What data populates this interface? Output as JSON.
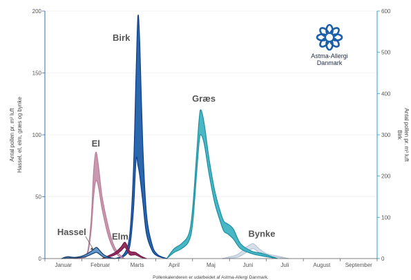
{
  "footer": "Pollenkalenderen er udarbeidet af Astma-Allergi Danmark.",
  "logo": {
    "line1": "Astma-Allergi",
    "line2": "Danmark",
    "icon": "astma-allergi-logo-icon",
    "color": "#1a5fa8"
  },
  "chart_data": {
    "type": "area",
    "title": "",
    "x_axis": {
      "type": "month",
      "range": [
        1,
        10
      ],
      "tick_labels": [
        "Januar",
        "Februar",
        "Marts",
        "April",
        "Maj",
        "Juni",
        "Juli",
        "August",
        "September"
      ]
    },
    "y_left": {
      "label_line1": "Antal pollen pr. m³ luft",
      "label_line2": "Hassel, el, elm, græs og bynke",
      "range": [
        0,
        200
      ],
      "ticks": [
        "0",
        "50",
        "100",
        "150",
        "200"
      ],
      "color": "#2d6fb0"
    },
    "y_right": {
      "label_line1": "Antal pollen pr. m³ luft",
      "label_line2": "Birk",
      "range": [
        0,
        600
      ],
      "ticks": [
        "0",
        "100",
        "200",
        "300",
        "400",
        "500",
        "600"
      ],
      "color": "#2a9fd6"
    },
    "grid": true,
    "series": [
      {
        "name": "Hassel",
        "axis": "left",
        "color": "#1a3e6b",
        "fill": "#5b94c8",
        "label_month": 2.1,
        "upper": [
          [
            1.45,
            0
          ],
          [
            1.6,
            1.5
          ],
          [
            1.8,
            1
          ],
          [
            2.0,
            2
          ],
          [
            2.15,
            4
          ],
          [
            2.3,
            7
          ],
          [
            2.4,
            9
          ],
          [
            2.5,
            6
          ],
          [
            2.6,
            3
          ],
          [
            2.75,
            1
          ],
          [
            2.9,
            0
          ]
        ],
        "lower": [
          [
            1.45,
            0
          ],
          [
            1.6,
            0.5
          ],
          [
            1.8,
            0.5
          ],
          [
            2.0,
            1
          ],
          [
            2.15,
            2
          ],
          [
            2.3,
            4
          ],
          [
            2.4,
            5
          ],
          [
            2.5,
            3
          ],
          [
            2.6,
            1
          ],
          [
            2.75,
            0.5
          ],
          [
            2.9,
            0
          ]
        ]
      },
      {
        "name": "El",
        "axis": "left",
        "color": "#b87d98",
        "fill": "#c594ad",
        "label_month": 2.4,
        "upper": [
          [
            1.8,
            0
          ],
          [
            2.0,
            1
          ],
          [
            2.15,
            5
          ],
          [
            2.25,
            30
          ],
          [
            2.32,
            70
          ],
          [
            2.38,
            86
          ],
          [
            2.45,
            75
          ],
          [
            2.55,
            50
          ],
          [
            2.7,
            28
          ],
          [
            2.85,
            12
          ],
          [
            3.0,
            4
          ],
          [
            3.15,
            0
          ]
        ],
        "lower": [
          [
            1.8,
            0
          ],
          [
            2.0,
            0.5
          ],
          [
            2.15,
            3
          ],
          [
            2.25,
            22
          ],
          [
            2.32,
            50
          ],
          [
            2.38,
            63
          ],
          [
            2.45,
            58
          ],
          [
            2.55,
            40
          ],
          [
            2.7,
            20
          ],
          [
            2.85,
            8
          ],
          [
            3.0,
            2
          ],
          [
            3.15,
            0
          ]
        ]
      },
      {
        "name": "Elm",
        "axis": "left",
        "color": "#7a1848",
        "fill": "#8a2556",
        "label_month": 2.8,
        "upper": [
          [
            2.55,
            0
          ],
          [
            2.7,
            2
          ],
          [
            2.9,
            5
          ],
          [
            3.05,
            9
          ],
          [
            3.15,
            13
          ],
          [
            3.2,
            12
          ],
          [
            3.3,
            6
          ],
          [
            3.45,
            5
          ],
          [
            3.6,
            2
          ],
          [
            3.75,
            0
          ]
        ],
        "lower": [
          [
            2.55,
            0
          ],
          [
            2.7,
            1
          ],
          [
            2.9,
            3
          ],
          [
            3.05,
            6
          ],
          [
            3.15,
            9
          ],
          [
            3.2,
            8
          ],
          [
            3.3,
            3
          ],
          [
            3.45,
            3
          ],
          [
            3.6,
            1
          ],
          [
            3.75,
            0
          ]
        ]
      },
      {
        "name": "Birk",
        "axis": "right",
        "color": "#0d3e8a",
        "fill": "#1f5fa8",
        "label_month": 3.0,
        "upper": [
          [
            2.9,
            0
          ],
          [
            3.15,
            12
          ],
          [
            3.3,
            60
          ],
          [
            3.4,
            220
          ],
          [
            3.47,
            450
          ],
          [
            3.52,
            588
          ],
          [
            3.57,
            520
          ],
          [
            3.65,
            280
          ],
          [
            3.75,
            110
          ],
          [
            3.9,
            35
          ],
          [
            4.05,
            10
          ],
          [
            4.3,
            0
          ]
        ],
        "lower": [
          [
            2.9,
            0
          ],
          [
            3.15,
            6
          ],
          [
            3.3,
            30
          ],
          [
            3.4,
            120
          ],
          [
            3.47,
            240
          ],
          [
            3.52,
            226
          ],
          [
            3.57,
            200
          ],
          [
            3.65,
            140
          ],
          [
            3.75,
            60
          ],
          [
            3.9,
            20
          ],
          [
            4.05,
            6
          ],
          [
            4.3,
            0
          ]
        ]
      },
      {
        "name": "Græs",
        "axis": "left",
        "color": "#1b8fa0",
        "fill": "#3fb3c3",
        "label_month": 5.0,
        "upper": [
          [
            4.3,
            0
          ],
          [
            4.5,
            8
          ],
          [
            4.7,
            12
          ],
          [
            4.9,
            20
          ],
          [
            5.0,
            40
          ],
          [
            5.1,
            80
          ],
          [
            5.18,
            113
          ],
          [
            5.23,
            120
          ],
          [
            5.32,
            108
          ],
          [
            5.45,
            80
          ],
          [
            5.6,
            55
          ],
          [
            5.75,
            38
          ],
          [
            5.85,
            30
          ],
          [
            5.95,
            28
          ],
          [
            6.1,
            24
          ],
          [
            6.3,
            12
          ],
          [
            6.6,
            6
          ],
          [
            6.9,
            4
          ],
          [
            7.3,
            0
          ]
        ],
        "lower": [
          [
            4.3,
            0
          ],
          [
            4.5,
            5
          ],
          [
            4.7,
            8
          ],
          [
            4.9,
            14
          ],
          [
            5.0,
            28
          ],
          [
            5.1,
            65
          ],
          [
            5.18,
            95
          ],
          [
            5.23,
            100
          ],
          [
            5.32,
            92
          ],
          [
            5.45,
            68
          ],
          [
            5.6,
            45
          ],
          [
            5.75,
            30
          ],
          [
            5.85,
            22
          ],
          [
            5.95,
            20
          ],
          [
            6.1,
            16
          ],
          [
            6.3,
            8
          ],
          [
            6.6,
            4
          ],
          [
            6.9,
            2
          ],
          [
            7.3,
            0
          ]
        ]
      },
      {
        "name": "Bynke",
        "axis": "left",
        "color": "#b8c4d6",
        "fill": "#d4dce8",
        "label_month": 6.6,
        "upper": [
          [
            5.8,
            0
          ],
          [
            6.2,
            3
          ],
          [
            6.4,
            8
          ],
          [
            6.55,
            11
          ],
          [
            6.65,
            12
          ],
          [
            6.8,
            8
          ],
          [
            7.0,
            4
          ],
          [
            7.3,
            2
          ],
          [
            7.6,
            0
          ]
        ],
        "lower": [
          [
            5.8,
            0
          ],
          [
            6.2,
            1
          ],
          [
            6.4,
            4
          ],
          [
            6.55,
            7
          ],
          [
            6.65,
            8
          ],
          [
            6.8,
            5
          ],
          [
            7.0,
            2
          ],
          [
            7.3,
            1
          ],
          [
            7.6,
            0
          ]
        ]
      }
    ]
  }
}
